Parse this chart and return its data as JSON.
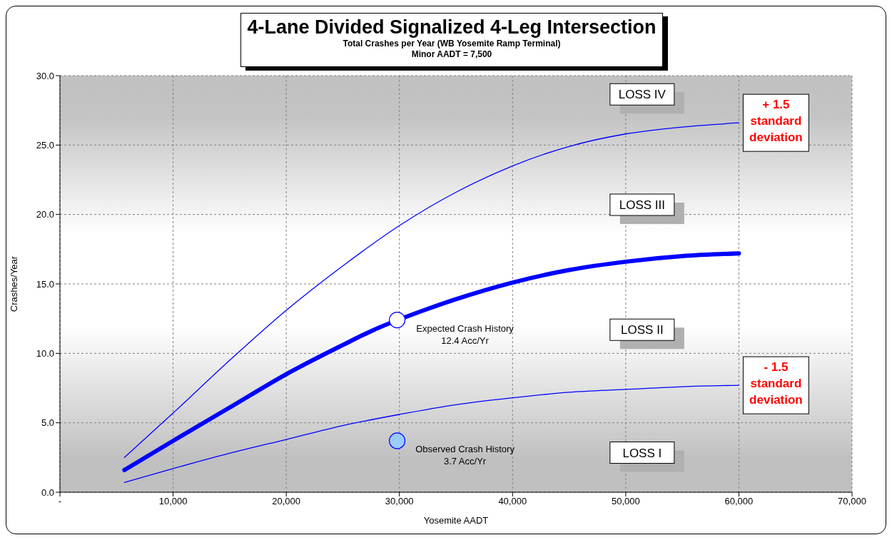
{
  "chart_data": {
    "type": "line",
    "title": "4-Lane Divided Signalized 4-Leg Intersection",
    "subtitle": "Total Crashes per Year (WB Yosemite Ramp Terminal)\nMinor AADT = 7,500",
    "xlabel": "Yosemite AADT",
    "ylabel": "Crashes/Year",
    "xlim": [
      0,
      70000
    ],
    "xticks": [
      {
        "value": 0,
        "label": "-"
      },
      {
        "value": 10000,
        "label": "10,000"
      },
      {
        "value": 20000,
        "label": "20,000"
      },
      {
        "value": 30000,
        "label": "30,000"
      },
      {
        "value": 40000,
        "label": "40,000"
      },
      {
        "value": 50000,
        "label": "50,000"
      },
      {
        "value": 60000,
        "label": "60,000"
      },
      {
        "value": 70000,
        "label": "70,000"
      }
    ],
    "ylim": [
      0,
      30
    ],
    "yticks": [
      {
        "value": 0,
        "label": "0.0"
      },
      {
        "value": 5,
        "label": "5.0"
      },
      {
        "value": 10,
        "label": "10.0"
      },
      {
        "value": 15,
        "label": "15.0"
      },
      {
        "value": 20,
        "label": "20.0"
      },
      {
        "value": 25,
        "label": "25.0"
      },
      {
        "value": 30,
        "label": "30.0"
      }
    ],
    "grid": true,
    "legend": false,
    "series": [
      {
        "color": "#0000ff",
        "x": [
          5700,
          10000,
          15000,
          20000,
          25000,
          30000,
          35000,
          40000,
          45000,
          50000,
          55000,
          60000
        ],
        "values": [
          2.5,
          5.7,
          9.5,
          13.1,
          16.3,
          19.2,
          21.6,
          23.5,
          24.9,
          25.8,
          26.3,
          26.6
        ]
      },
      {
        "color": "#0000ff",
        "x": [
          5700,
          10000,
          15000,
          20000,
          25000,
          27500,
          32500,
          35000,
          40000,
          45000,
          50000,
          55000,
          60000
        ],
        "values": [
          1.6,
          3.7,
          6.1,
          8.5,
          10.6,
          11.6,
          13.2,
          13.9,
          15.1,
          16.0,
          16.6,
          17.0,
          17.2
        ]
      },
      {
        "color": "#0000ff",
        "x": [
          5700,
          10000,
          15000,
          20000,
          25000,
          30000,
          35000,
          40000,
          45000,
          50000,
          55000,
          60000
        ],
        "values": [
          0.7,
          1.7,
          2.8,
          3.8,
          4.8,
          5.6,
          6.3,
          6.8,
          7.2,
          7.4,
          7.6,
          7.7
        ]
      },
      {
        "type": "scatter",
        "marker": "circle",
        "color": "#ffffff",
        "x": [
          29800
        ],
        "values": [
          12.4
        ],
        "value_labels": [
          "Expected Crash History\n12.4 Acc/Yr"
        ]
      },
      {
        "type": "scatter",
        "marker": "circle",
        "color": "#99ccff",
        "x": [
          29800
        ],
        "values": [
          3.7
        ],
        "value_labels": [
          "Observed Crash History\n3.7 Acc/Yr"
        ]
      }
    ],
    "annotations": [
      "LOSS IV",
      "LOSS III",
      "LOSS II",
      "LOSS I",
      {
        "text": "+ 1.5\nstandard\ndeviation",
        "x": 60000,
        "y": 26.6
      },
      {
        "text": "- 1.5\nstandard\ndeviation",
        "x": 60000,
        "y": 7.7
      }
    ]
  }
}
